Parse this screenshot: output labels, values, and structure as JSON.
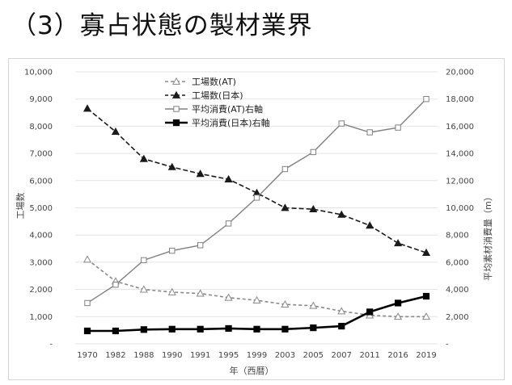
{
  "page": {
    "heading": "（3）寡占状態の製材業界"
  },
  "chart_data": {
    "type": "line",
    "title": "",
    "xlabel": "年（西暦）",
    "ylabel_left": "工場数",
    "ylabel_right": "平均素材消費量（m）",
    "ylim_left": [
      0,
      10000
    ],
    "ylim_right": [
      0,
      20000
    ],
    "yticks_left": [
      "-",
      "1,000",
      "2,000",
      "3,000",
      "4,000",
      "5,000",
      "6,000",
      "7,000",
      "8,000",
      "9,000",
      "10,000"
    ],
    "yticks_right": [
      "-",
      "2,000",
      "4,000",
      "6,000",
      "8,000",
      "10,000",
      "12,000",
      "14,000",
      "16,000",
      "18,000",
      "20,000"
    ],
    "categories": [
      "1970",
      "1982",
      "1988",
      "1990",
      "1991",
      "1995",
      "1999",
      "2003",
      "2005",
      "2007",
      "2011",
      "2016",
      "2019"
    ],
    "grid": true,
    "legend_position": "top-center",
    "series": [
      {
        "name": "工場数(AT)",
        "axis": "left",
        "line": "dashed",
        "marker": "triangle-open",
        "color": "#888888",
        "values": [
          3100,
          2300,
          2000,
          1900,
          1850,
          1700,
          1600,
          1450,
          1400,
          1200,
          1050,
          1000,
          1000
        ]
      },
      {
        "name": "工場数(日本)",
        "axis": "left",
        "line": "dashed",
        "marker": "triangle-filled",
        "color": "#1a1a1a",
        "values": [
          8650,
          7800,
          6800,
          6500,
          6250,
          6050,
          5550,
          5000,
          4950,
          4750,
          4350,
          3700,
          3350
        ]
      },
      {
        "name": "平均消費(AT)右軸",
        "axis": "right",
        "line": "solid",
        "marker": "square-open",
        "color": "#808080",
        "values": [
          3000,
          4350,
          6150,
          6850,
          7250,
          8850,
          10750,
          12850,
          14100,
          16200,
          15550,
          15900,
          18000
        ]
      },
      {
        "name": "平均消費(日本)右軸",
        "axis": "right",
        "line": "solid",
        "marker": "square-filled",
        "color": "#000000",
        "values": [
          950,
          950,
          1050,
          1080,
          1080,
          1130,
          1080,
          1080,
          1180,
          1300,
          2350,
          3000,
          3500
        ]
      }
    ]
  }
}
